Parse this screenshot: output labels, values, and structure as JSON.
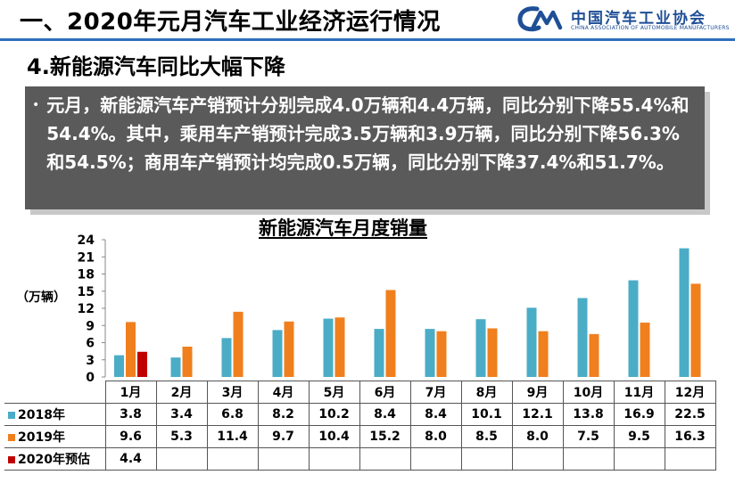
{
  "header": {
    "title": "一、2020年元月汽车工业经济运行情况",
    "logo_cn": "中国汽车工业协会",
    "logo_en": "CHINA ASSOCIATION OF AUTOMOBILE MANUFACTURERS"
  },
  "subtitle": "4.新能源汽车同比大幅下降",
  "summary": {
    "bullet": "•",
    "text": "元月，新能源汽车产销预计分别完成4.0万辆和4.4万辆，同比分别下降55.4%和54.4%。其中，乘用车产销预计完成3.5万辆和3.9万辆，同比分别下降56.3%和54.5%；商用车产销预计均完成0.5万辆，同比分别下降37.4%和51.7%。"
  },
  "colors": {
    "s2018": "#4bacc6",
    "s2019": "#f07f1e",
    "s2020": "#c00000"
  },
  "chart_data": {
    "type": "bar",
    "title": "新能源汽车月度销量",
    "ylabel": "（万辆）",
    "ylim": [
      0,
      24
    ],
    "yticks": [
      "0",
      "3",
      "6",
      "9",
      "12",
      "15",
      "18",
      "21",
      "24"
    ],
    "categories": [
      "1月",
      "2月",
      "3月",
      "4月",
      "5月",
      "6月",
      "7月",
      "8月",
      "9月",
      "10月",
      "11月",
      "12月"
    ],
    "series": [
      {
        "name": "2018年",
        "values": [
          3.8,
          3.4,
          6.8,
          8.2,
          10.2,
          8.4,
          8.4,
          10.1,
          12.1,
          13.8,
          16.9,
          22.5
        ],
        "labels": [
          "3.8",
          "3.4",
          "6.8",
          "8.2",
          "10.2",
          "8.4",
          "8.4",
          "10.1",
          "12.1",
          "13.8",
          "16.9",
          "22.5"
        ]
      },
      {
        "name": "2019年",
        "values": [
          9.6,
          5.3,
          11.4,
          9.7,
          10.4,
          15.2,
          8.0,
          8.5,
          8.0,
          7.5,
          9.5,
          16.3
        ],
        "labels": [
          "9.6",
          "5.3",
          "11.4",
          "9.7",
          "10.4",
          "15.2",
          "8.0",
          "8.5",
          "8.0",
          "7.5",
          "9.5",
          "16.3"
        ]
      },
      {
        "name": "2020年预估",
        "values": [
          4.4,
          null,
          null,
          null,
          null,
          null,
          null,
          null,
          null,
          null,
          null,
          null
        ],
        "labels": [
          "4.4",
          "",
          "",
          "",
          "",
          "",
          "",
          "",
          "",
          "",
          "",
          ""
        ]
      }
    ]
  }
}
